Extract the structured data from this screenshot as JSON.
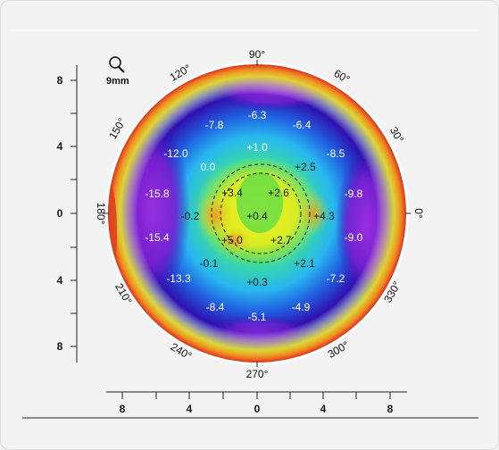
{
  "toolbar": {
    "zoom_label": "9mm",
    "zoom_icon": "magnifier-icon"
  },
  "axes": {
    "left_ticks": [
      "8",
      "4",
      "0",
      "4",
      "8"
    ],
    "bottom_ticks": [
      "8",
      "4",
      "0",
      "4",
      "8"
    ]
  },
  "angles": {
    "a90": "90°",
    "a60": "60°",
    "a30": "30°",
    "a0": "0°",
    "a330": "330°",
    "a300": "300°",
    "a270": "270°",
    "a240": "240°",
    "a210": "210°",
    "a180": "180°",
    "a150": "150°",
    "a120": "120°"
  },
  "map_values": [
    {
      "id": "v1",
      "text": "-6.3"
    },
    {
      "id": "v2",
      "text": "-7.8"
    },
    {
      "id": "v3",
      "text": "-6.4"
    },
    {
      "id": "v4",
      "text": "-12.0"
    },
    {
      "id": "v5",
      "text": "+1.0"
    },
    {
      "id": "v6",
      "text": "-8.5"
    },
    {
      "id": "v7",
      "text": "0.0"
    },
    {
      "id": "v8",
      "text": "+2.5"
    },
    {
      "id": "v9",
      "text": "-15.8"
    },
    {
      "id": "v10",
      "text": "+3.4"
    },
    {
      "id": "v11",
      "text": "+2.6"
    },
    {
      "id": "v12",
      "text": "-9.8"
    },
    {
      "id": "v13",
      "text": "-0.2"
    },
    {
      "id": "v14",
      "text": "+0.4"
    },
    {
      "id": "v15",
      "text": "+4.3"
    },
    {
      "id": "v16",
      "text": "-15.4"
    },
    {
      "id": "v17",
      "text": "+5.0"
    },
    {
      "id": "v18",
      "text": "+2.7"
    },
    {
      "id": "v19",
      "text": "-9.0"
    },
    {
      "id": "v20",
      "text": "-0.1"
    },
    {
      "id": "v21",
      "text": "+2.1"
    },
    {
      "id": "v22",
      "text": "-13.3"
    },
    {
      "id": "v23",
      "text": "+0.3"
    },
    {
      "id": "v24",
      "text": "-7.2"
    },
    {
      "id": "v25",
      "text": "-8.4"
    },
    {
      "id": "v26",
      "text": "-4.9"
    },
    {
      "id": "v27",
      "text": "-5.1"
    }
  ],
  "colors": {
    "purple": "#8a2be2",
    "blue": "#2020c8",
    "cyan": "#20c0f0",
    "green": "#30d050",
    "yellow": "#f0f020",
    "orange": "#f0a020",
    "red": "#e03020"
  }
}
